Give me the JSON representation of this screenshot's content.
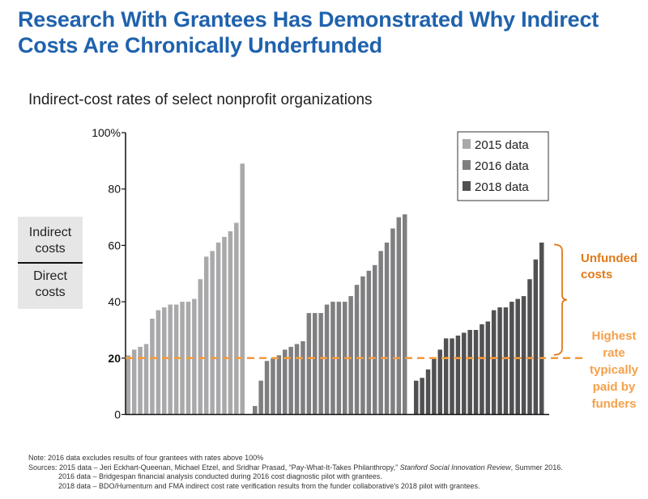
{
  "title": "Research With Grantees Has Demonstrated Why Indirect Costs Are Chronically Underfunded",
  "ratio_box": {
    "numerator": "Indirect costs",
    "denominator": "Direct costs"
  },
  "annotations": {
    "unfunded": "Unfunded costs",
    "highest_rate": "Highest rate typically paid by funders"
  },
  "notes": {
    "note": "Note: 2016 data excludes results of four grantees with rates above 100%",
    "sources_label": "Sources: ",
    "source_2015_a": "2015 data – Jeri Eckhart-Queenan, Michael Etzel, and Sridhar Prasad, “Pay-What-It-Takes Philanthropy,” ",
    "source_2015_journal": "Stanford Social Innovation Review",
    "source_2015_b": ", Summer 2016.",
    "source_2016": "2016 data – Bridgespan financial analysis conducted during 2016 cost diagnostic pilot with grantees.",
    "source_2018": "2018 data – BDO/Humentum and FMA indirect cost rate verification results from the funder collaborative's 2018 pilot with grantees."
  },
  "chart_data": {
    "type": "bar",
    "title": "Indirect-cost rates of select nonprofit organizations",
    "ylim": [
      0,
      100
    ],
    "yticks": [
      0,
      20,
      40,
      60,
      80,
      100
    ],
    "ytick_labels": [
      "0",
      "20",
      "40",
      "60",
      "80",
      "100%"
    ],
    "grid": false,
    "legend_position": "top-right",
    "reference_line": {
      "value": 20,
      "color": "#f39a3c",
      "style": "dashed"
    },
    "series": [
      {
        "name": "2015 data",
        "color": "#a9a9ab",
        "values": [
          21,
          23,
          24,
          25,
          34,
          37,
          38,
          39,
          39,
          40,
          40,
          41,
          48,
          56,
          58,
          61,
          63,
          65,
          68,
          89
        ]
      },
      {
        "name": "2016 data",
        "color": "#7f7f82",
        "values": [
          3,
          12,
          19,
          20,
          21,
          23,
          24,
          25,
          26,
          36,
          36,
          36,
          39,
          40,
          40,
          40,
          42,
          46,
          49,
          51,
          53,
          58,
          61,
          66,
          70,
          71
        ]
      },
      {
        "name": "2018 data",
        "color": "#515153",
        "values": [
          12,
          13,
          16,
          20,
          23,
          27,
          27,
          28,
          29,
          30,
          30,
          32,
          33,
          37,
          38,
          38,
          40,
          41,
          42,
          48,
          55,
          61
        ]
      }
    ]
  },
  "colors": {
    "title": "#1f62ad",
    "unfunded": "#e07a1a",
    "highest_rate": "#f5a04a"
  }
}
